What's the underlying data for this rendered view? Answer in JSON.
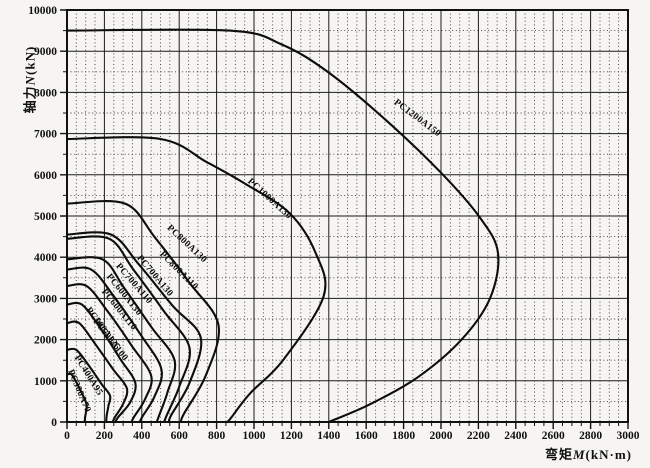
{
  "page": {
    "background": "#f6f5f1",
    "ink": "#161616",
    "grid_major_color": "#1c1c1c",
    "grid_minor_color": "#3a3a3a"
  },
  "y_axis": {
    "name_cn": "轴力",
    "name_var": "N",
    "name_unit": "(kN)",
    "min": 0,
    "max": 10000,
    "major_step": 1000,
    "minor_step": 500,
    "tick_labels": [
      "0",
      "1000",
      "2000",
      "3000",
      "4000",
      "5000",
      "6000",
      "7000",
      "8000",
      "9000",
      "10000"
    ]
  },
  "x_axis": {
    "name_cn": "弯矩",
    "name_var": "M",
    "name_unit": "(kN·m)",
    "min": 0,
    "max": 3000,
    "major_step": 200,
    "minor_step": 50,
    "tick_labels": [
      "0",
      "200",
      "400",
      "600",
      "800",
      "1000",
      "1200",
      "1400",
      "1600",
      "1800",
      "2000",
      "2200",
      "2400",
      "2600",
      "2800",
      "3000"
    ]
  },
  "chart_data": {
    "type": "line",
    "title": "",
    "xlabel": "弯矩 M (kN·m)",
    "ylabel": "轴力 N (kN)",
    "xlim": [
      0,
      3000
    ],
    "ylim": [
      0,
      10000
    ],
    "grid": "solid major lines (x:200, y:1000), dotted minor lines (x:50, y:500)",
    "legend": "labels printed along each curve",
    "series": [
      {
        "name": "PC300A70",
        "points": [
          [
            0,
            1150
          ],
          [
            25,
            1150
          ],
          [
            60,
            880
          ],
          [
            90,
            600
          ],
          [
            105,
            420
          ],
          [
            103,
            280
          ],
          [
            97,
            120
          ],
          [
            95,
            0
          ]
        ],
        "label": {
          "m": 53,
          "n": 730,
          "angle": 67
        }
      },
      {
        "name": "PC400A95",
        "points": [
          [
            0,
            1750
          ],
          [
            50,
            1750
          ],
          [
            115,
            1380
          ],
          [
            185,
            920
          ],
          [
            230,
            640
          ],
          [
            222,
            400
          ],
          [
            212,
            150
          ],
          [
            210,
            0
          ]
        ],
        "label": {
          "m": 103,
          "n": 1100,
          "angle": 58
        }
      },
      {
        "name": "PC500A100",
        "points": [
          [
            0,
            2400
          ],
          [
            65,
            2400
          ],
          [
            150,
            1900
          ],
          [
            248,
            1270
          ],
          [
            320,
            820
          ],
          [
            300,
            440
          ],
          [
            255,
            110
          ],
          [
            245,
            0
          ]
        ],
        "label": {
          "m": 222,
          "n": 1960,
          "angle": 52
        }
      },
      {
        "name": "PC500A125",
        "points": [
          [
            0,
            2850
          ],
          [
            80,
            2850
          ],
          [
            175,
            2300
          ],
          [
            285,
            1530
          ],
          [
            365,
            950
          ],
          [
            338,
            480
          ],
          [
            272,
            110
          ],
          [
            260,
            0
          ]
        ],
        "label": {
          "m": 182,
          "n": 2230,
          "angle": 53
        }
      },
      {
        "name": "PC600A110",
        "points": [
          [
            0,
            3300
          ],
          [
            105,
            3300
          ],
          [
            215,
            2700
          ],
          [
            345,
            1860
          ],
          [
            450,
            1120
          ],
          [
            418,
            560
          ],
          [
            358,
            120
          ],
          [
            345,
            0
          ]
        ],
        "label": {
          "m": 268,
          "n": 2690,
          "angle": 51
        }
      },
      {
        "name": "PC600A130",
        "points": [
          [
            0,
            3700
          ],
          [
            130,
            3700
          ],
          [
            250,
            3050
          ],
          [
            395,
            2110
          ],
          [
            505,
            1280
          ],
          [
            468,
            620
          ],
          [
            403,
            130
          ],
          [
            390,
            0
          ]
        ],
        "label": {
          "m": 295,
          "n": 3050,
          "angle": 51
        }
      },
      {
        "name": "PC700A110",
        "points": [
          [
            0,
            3950
          ],
          [
            190,
            3950
          ],
          [
            305,
            3260
          ],
          [
            450,
            2310
          ],
          [
            575,
            1500
          ],
          [
            538,
            730
          ],
          [
            492,
            150
          ],
          [
            480,
            0
          ]
        ],
        "label": {
          "m": 348,
          "n": 3320,
          "angle": 49
        }
      },
      {
        "name": "PC700A130",
        "points": [
          [
            0,
            4450
          ],
          [
            225,
            4450
          ],
          [
            355,
            3700
          ],
          [
            520,
            2680
          ],
          [
            655,
            1800
          ],
          [
            602,
            880
          ],
          [
            533,
            160
          ],
          [
            520,
            0
          ]
        ],
        "label": {
          "m": 460,
          "n": 3510,
          "angle": 50
        }
      },
      {
        "name": "PC800A110",
        "points": [
          [
            0,
            4550
          ],
          [
            235,
            4550
          ],
          [
            385,
            3820
          ],
          [
            565,
            2820
          ],
          [
            715,
            2050
          ],
          [
            658,
            980
          ],
          [
            558,
            170
          ],
          [
            545,
            0
          ]
        ],
        "label": {
          "m": 588,
          "n": 3630,
          "angle": 45
        }
      },
      {
        "name": "PC800A130",
        "points": [
          [
            0,
            5300
          ],
          [
            310,
            5300
          ],
          [
            470,
            4480
          ],
          [
            655,
            3380
          ],
          [
            810,
            2350
          ],
          [
            742,
            1130
          ],
          [
            624,
            190
          ],
          [
            610,
            0
          ]
        ],
        "label": {
          "m": 632,
          "n": 4280,
          "angle": 43
        }
      },
      {
        "name": "PC1000A130",
        "points": [
          [
            0,
            6870
          ],
          [
            500,
            6870
          ],
          [
            750,
            6300
          ],
          [
            950,
            5790
          ],
          [
            1190,
            5070
          ],
          [
            1330,
            4100
          ],
          [
            1372,
            3050
          ],
          [
            1155,
            1500
          ],
          [
            980,
            700
          ],
          [
            880,
            120
          ],
          [
            858,
            0
          ]
        ],
        "label": {
          "m": 1075,
          "n": 5375,
          "angle": 42
        }
      },
      {
        "name": "PC1200A150",
        "points": [
          [
            0,
            9500
          ],
          [
            870,
            9500
          ],
          [
            1150,
            9160
          ],
          [
            1400,
            8480
          ],
          [
            1700,
            7350
          ],
          [
            2000,
            6050
          ],
          [
            2210,
            4950
          ],
          [
            2305,
            4100
          ],
          [
            2262,
            3000
          ],
          [
            2110,
            2000
          ],
          [
            1880,
            1100
          ],
          [
            1620,
            430
          ],
          [
            1400,
            0
          ]
        ],
        "label": {
          "m": 1866,
          "n": 7330,
          "angle": 37
        }
      }
    ]
  }
}
